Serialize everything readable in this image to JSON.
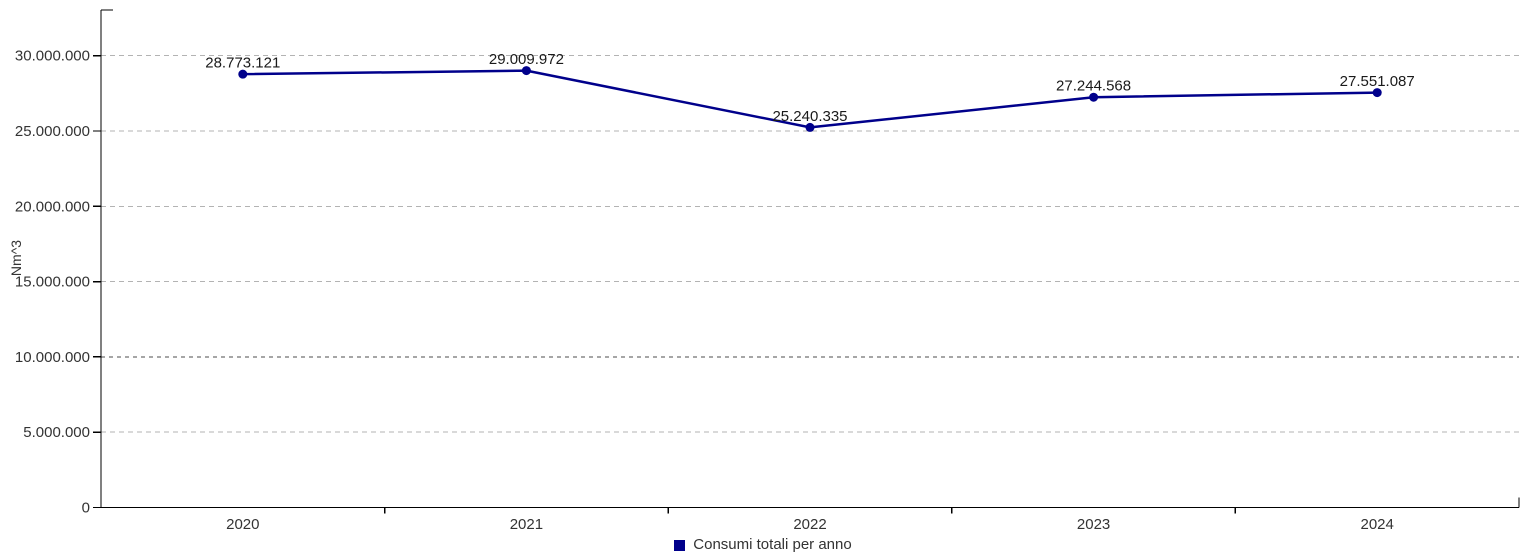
{
  "chart_data": {
    "type": "line",
    "categories": [
      "2020",
      "2021",
      "2022",
      "2023",
      "2024"
    ],
    "series": [
      {
        "name": "Consumi totali per anno",
        "values": [
          28773121,
          29009972,
          25240335,
          27244568,
          27551087
        ],
        "point_labels": [
          "28.773.121",
          "29.009.972",
          "25.240.335",
          "27.244.568",
          "27.551.087"
        ]
      }
    ],
    "title": "",
    "xlabel": "",
    "ylabel": "Nm^3",
    "ylim": [
      0,
      33000000
    ],
    "ytick_interval": 5000000,
    "ytick_labels": [
      "0",
      "5.000.000",
      "10.000.000",
      "15.000.000",
      "20.000.000",
      "25.000.000",
      "30.000.000"
    ],
    "grid": "horizontal-dashed",
    "legend_position": "bottom-center",
    "colors": {
      "series": "#00008B",
      "grid": "#b3b3b3",
      "grid_emphasis": "#a6a6a6",
      "axis": "#000000",
      "text": "#333333"
    }
  }
}
